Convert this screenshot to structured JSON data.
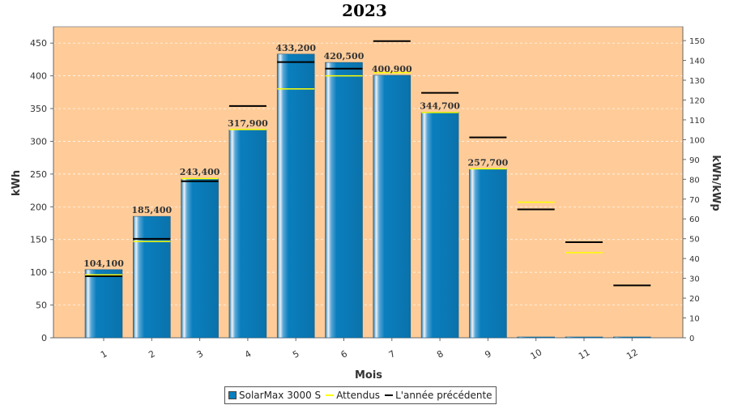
{
  "colors": {
    "plot_background": "#ffcc99",
    "bar": "#0a7fbe",
    "bar_highlight": "#ffffff",
    "expected_line": "#ffff00",
    "previous_year_line": "#000000"
  },
  "chart_data": {
    "type": "bar",
    "title": "2023",
    "xlabel": "Mois",
    "ylabel": "kWh",
    "ylabel_right": "kWh/kWp",
    "categories": [
      "1",
      "2",
      "3",
      "4",
      "5",
      "6",
      "7",
      "8",
      "9",
      "10",
      "11",
      "12"
    ],
    "ylim": [
      0,
      475
    ],
    "yticks": [
      0,
      50,
      100,
      150,
      200,
      250,
      300,
      350,
      400,
      450
    ],
    "ylim_right": [
      0,
      157
    ],
    "yticks_right": [
      0,
      10,
      20,
      30,
      40,
      50,
      60,
      70,
      80,
      90,
      100,
      110,
      120,
      130,
      140,
      150
    ],
    "grid": true,
    "legend_position": "bottom",
    "series": [
      {
        "name": "SolarMax 3000 S",
        "kind": "bar",
        "values": [
          104.1,
          185.4,
          243.4,
          317.9,
          433.2,
          420.5,
          400.9,
          344.7,
          257.7,
          0,
          0,
          0
        ],
        "labels": [
          "104,100",
          "185,400",
          "243,400",
          "317,900",
          "433,200",
          "420,500",
          "400,900",
          "344,700",
          "257,700",
          "",
          "",
          ""
        ]
      },
      {
        "name": "Attendus",
        "kind": "marker",
        "values": [
          96,
          147,
          243,
          318,
          380,
          400,
          405,
          344,
          258,
          207,
          130,
          80
        ]
      },
      {
        "name": "L'année précédente",
        "kind": "marker",
        "values": [
          94,
          151,
          239,
          354,
          421,
          411,
          453,
          374,
          306,
          196,
          146,
          80
        ]
      }
    ]
  }
}
